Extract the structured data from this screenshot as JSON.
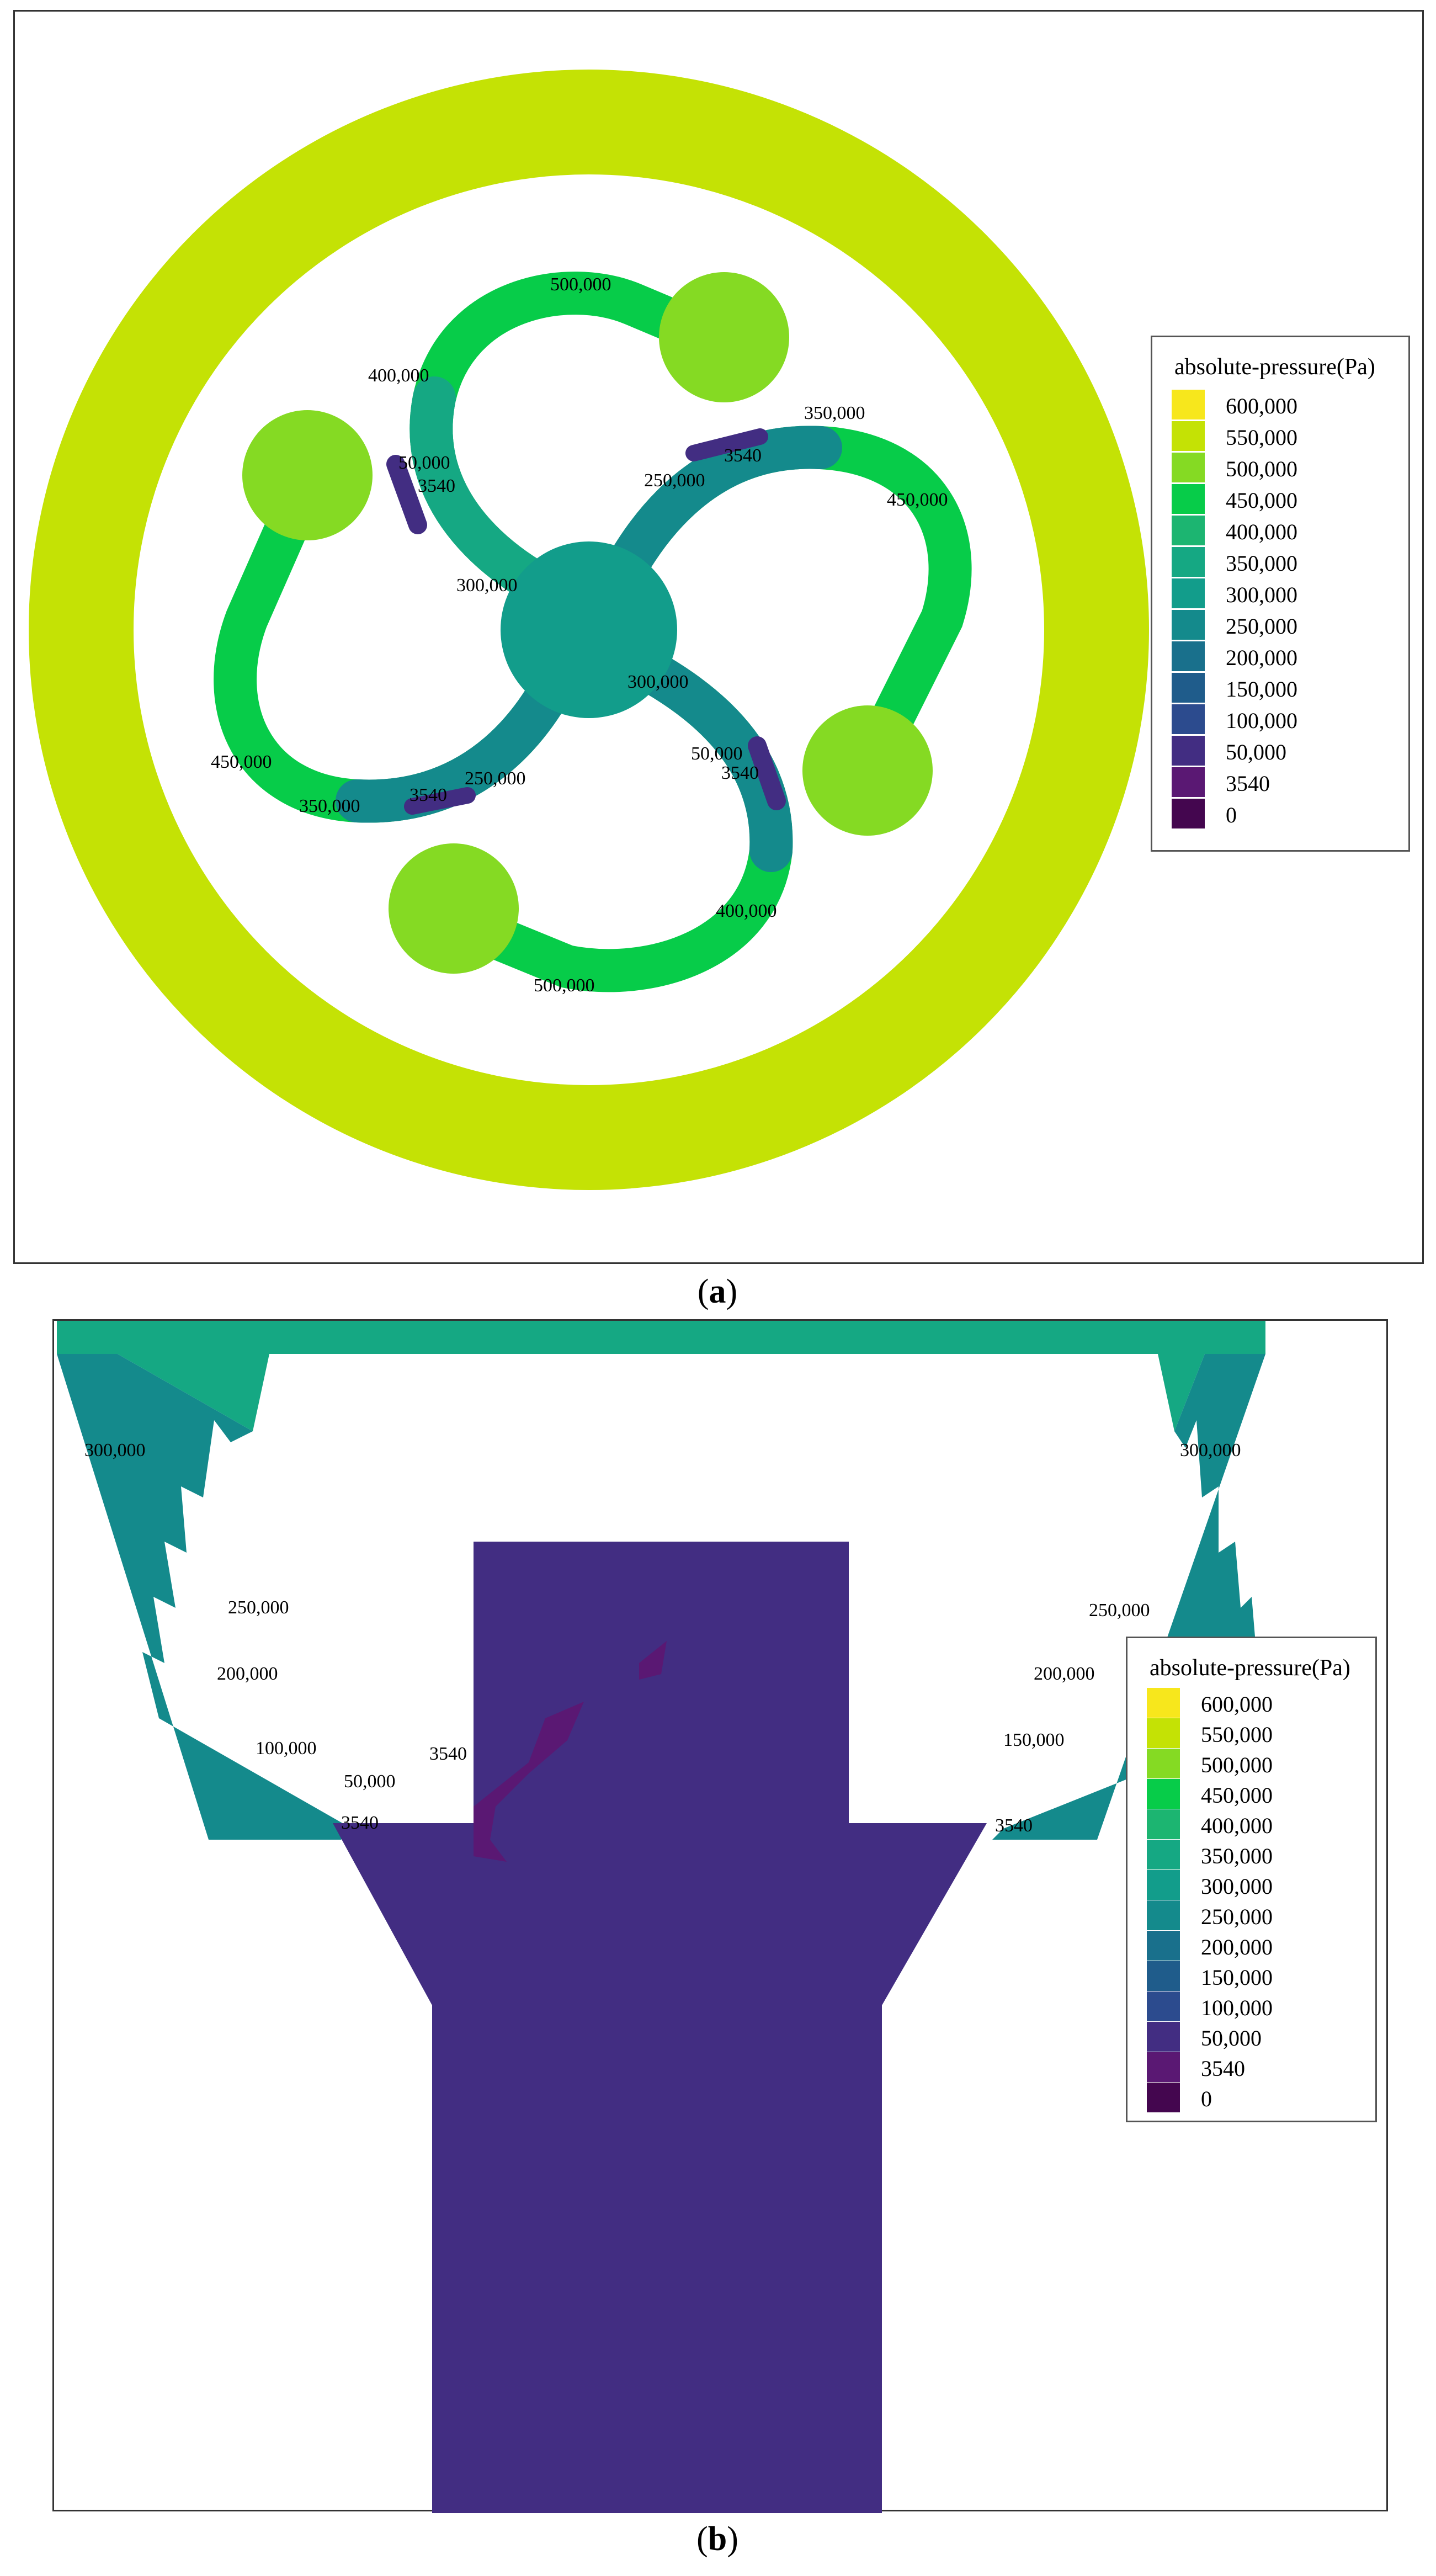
{
  "figure": {
    "panel_a": {
      "caption_open": "(",
      "caption_letter": "a",
      "caption_close": ")",
      "legend": {
        "title": "absolute-pressure(Pa)",
        "entries": [
          {
            "label": "600,000",
            "color": "#f7e71c"
          },
          {
            "label": "550,000",
            "color": "#c4e205"
          },
          {
            "label": "500,000",
            "color": "#85da23"
          },
          {
            "label": "450,000",
            "color": "#07cc49"
          },
          {
            "label": "400,000",
            "color": "#1cb571"
          },
          {
            "label": "350,000",
            "color": "#15a883"
          },
          {
            "label": "300,000",
            "color": "#129d8b"
          },
          {
            "label": "250,000",
            "color": "#148a8c"
          },
          {
            "label": "200,000",
            "color": "#19708c"
          },
          {
            "label": "150,000",
            "color": "#1f5c8b"
          },
          {
            "label": "100,000",
            "color": "#2c4b8e"
          },
          {
            "label": "50,000",
            "color": "#422d82"
          },
          {
            "label": "3540",
            "color": "#5a1873"
          },
          {
            "label": "0",
            "color": "#44064f"
          }
        ]
      },
      "contour_labels": [
        "500,000",
        "400,000",
        "50,000",
        "3540",
        "300,000",
        "350,000",
        "3540",
        "250,000",
        "450,000",
        "300,000",
        "50,000",
        "3540",
        "450,000",
        "350,000",
        "3540",
        "250,000",
        "400,000",
        "500,000"
      ]
    },
    "panel_b": {
      "caption_open": "(",
      "caption_letter": "b",
      "caption_close": ")",
      "legend": {
        "title": "absolute-pressure(Pa)",
        "entries": [
          {
            "label": "600,000",
            "color": "#f7e71c"
          },
          {
            "label": "550,000",
            "color": "#c4e205"
          },
          {
            "label": "500,000",
            "color": "#85da23"
          },
          {
            "label": "450,000",
            "color": "#07cc49"
          },
          {
            "label": "400,000",
            "color": "#1cb571"
          },
          {
            "label": "350,000",
            "color": "#15a883"
          },
          {
            "label": "300,000",
            "color": "#129d8b"
          },
          {
            "label": "250,000",
            "color": "#148a8c"
          },
          {
            "label": "200,000",
            "color": "#19708c"
          },
          {
            "label": "150,000",
            "color": "#1f5c8b"
          },
          {
            "label": "100,000",
            "color": "#2c4b8e"
          },
          {
            "label": "50,000",
            "color": "#422d82"
          },
          {
            "label": "3540",
            "color": "#5a1873"
          },
          {
            "label": "0",
            "color": "#44064f"
          }
        ]
      },
      "contour_labels": [
        "300,000",
        "300,000",
        "250,000",
        "250,000",
        "200,000",
        "200,000",
        "100,000",
        "150,000",
        "50,000",
        "3540",
        "3540",
        "3540"
      ]
    }
  }
}
